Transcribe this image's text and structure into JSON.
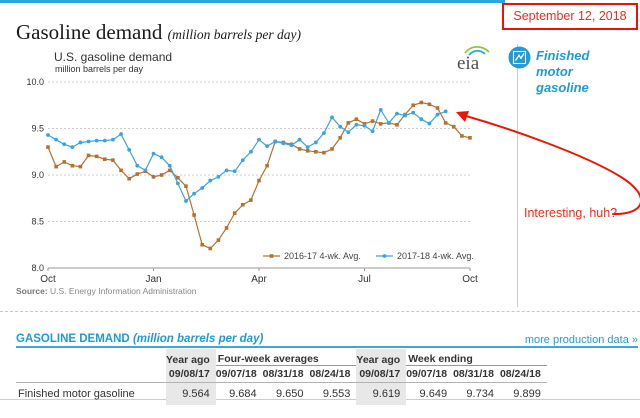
{
  "header": {
    "date_stamp": "September 12, 2018",
    "title": "Gasoline demand",
    "title_note": "(million barrels per day)"
  },
  "branding": {
    "eia_logo_text": "eia",
    "finished_motor_gasoline": "Finished motor gasoline"
  },
  "annotations": {
    "interesting": "Interesting, huh?",
    "arrow_color": "#ee1505"
  },
  "source": {
    "label": "Source:",
    "text": "U.S. Energy Information Administration"
  },
  "chart_data": {
    "type": "line",
    "title": "U.S. gasoline demand",
    "ylabel": "million barrels per day",
    "ylim": [
      8.0,
      10.0
    ],
    "yticks": [
      10.0,
      9.5,
      9.0,
      8.5,
      8.0
    ],
    "xticklabels": [
      "Oct",
      "Jan",
      "Apr",
      "Jul",
      "Oct"
    ],
    "xtick_week_positions": [
      0,
      13,
      26,
      39,
      52
    ],
    "grid": true,
    "legend_position": "bottom",
    "series": [
      {
        "name": "2016-17  4-wk. Avg.",
        "color": "#b5722e",
        "marker": "square",
        "values": [
          9.3,
          9.09,
          9.14,
          9.1,
          9.09,
          9.21,
          9.2,
          9.17,
          9.16,
          9.05,
          8.96,
          9.01,
          9.04,
          8.98,
          9.0,
          9.05,
          8.97,
          8.88,
          8.57,
          8.25,
          8.21,
          8.3,
          8.43,
          8.59,
          8.68,
          8.73,
          8.94,
          9.1,
          9.36,
          9.35,
          9.33,
          9.28,
          9.26,
          9.25,
          9.24,
          9.28,
          9.4,
          9.56,
          9.6,
          9.55,
          9.58,
          9.55,
          9.56,
          9.54,
          9.65,
          9.75,
          9.78,
          9.76,
          9.72,
          9.56,
          9.52,
          9.42,
          9.4
        ]
      },
      {
        "name": "2017-18  4-wk. Avg.",
        "color": "#3aa5dc",
        "marker": "circle",
        "values": [
          9.43,
          9.38,
          9.33,
          9.3,
          9.35,
          9.36,
          9.37,
          9.37,
          9.38,
          9.44,
          9.27,
          9.1,
          9.05,
          9.23,
          9.19,
          9.1,
          8.91,
          8.72,
          8.8,
          8.86,
          8.94,
          8.98,
          9.05,
          9.04,
          9.16,
          9.25,
          9.38,
          9.31,
          9.36,
          9.34,
          9.32,
          9.38,
          9.3,
          9.35,
          9.45,
          9.62,
          9.52,
          9.46,
          9.54,
          9.53,
          9.47,
          9.7,
          9.56,
          9.66,
          9.64,
          9.67,
          9.6,
          9.553,
          9.65,
          9.684
        ]
      }
    ]
  },
  "section": {
    "title": "GASOLINE DEMAND",
    "title_note": "(million barrels per day)",
    "more_link": "more production data »"
  },
  "table": {
    "row_label": "Finished motor gasoline",
    "groups": [
      {
        "label": "Year ago",
        "shaded": true,
        "dates": [
          "09/08/17"
        ],
        "values": [
          "9.564"
        ]
      },
      {
        "label": "Four-week averages",
        "shaded": false,
        "dates": [
          "09/07/18",
          "08/31/18",
          "08/24/18"
        ],
        "values": [
          "9.684",
          "9.650",
          "9.553"
        ]
      },
      {
        "label": "Year ago",
        "shaded": true,
        "dates": [
          "09/08/17"
        ],
        "values": [
          "9.619"
        ]
      },
      {
        "label": "Week ending",
        "shaded": false,
        "dates": [
          "09/07/18",
          "08/31/18",
          "08/24/18"
        ],
        "values": [
          "9.649",
          "9.734",
          "9.899"
        ]
      }
    ]
  }
}
